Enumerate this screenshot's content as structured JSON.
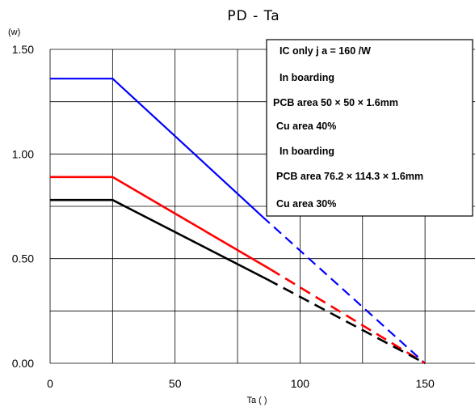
{
  "chart_data": {
    "type": "line",
    "title": "PD - Ta",
    "unit_label": "(w)",
    "xlabel": "Ta (   )",
    "ylabel": "",
    "xlim": [
      0,
      170
    ],
    "ylim": [
      0,
      1.5
    ],
    "x_ticks": [
      0,
      50,
      100,
      150
    ],
    "x_tick_labels": [
      "0",
      "50",
      "100",
      "150"
    ],
    "y_ticks": [
      0,
      0.5,
      1.0,
      1.5
    ],
    "y_tick_labels": [
      "0.00",
      "0.50",
      "1.00",
      "1.50"
    ],
    "grid": true,
    "series": [
      {
        "color": "#0000ff",
        "style": "solid",
        "x": [
          0,
          25,
          85
        ],
        "y": [
          1.36,
          1.36,
          0.7
        ]
      },
      {
        "color": "#0000ff",
        "style": "dashed",
        "x": [
          85,
          150
        ],
        "y": [
          0.7,
          0.0
        ]
      },
      {
        "color": "#ff0000",
        "style": "solid",
        "x": [
          0,
          25,
          88
        ],
        "y": [
          0.89,
          0.89,
          0.45
        ]
      },
      {
        "color": "#ff0000",
        "style": "dashed",
        "x": [
          88,
          150
        ],
        "y": [
          0.45,
          0.0
        ]
      },
      {
        "color": "#000000",
        "style": "solid",
        "x": [
          0,
          25,
          87
        ],
        "y": [
          0.78,
          0.78,
          0.4
        ]
      },
      {
        "color": "#000000",
        "style": "dashed",
        "x": [
          87,
          150
        ],
        "y": [
          0.4,
          0.0
        ]
      }
    ],
    "legend_lines": [
      "IC only    j    a = 160    /W",
      "In boarding",
      "PCB area 50 × 50 × 1.6mm",
      "Cu area   40%",
      "In boarding",
      "PCB area 76.2 × 114.3 × 1.6mm",
      "Cu area   30%"
    ],
    "legend_position": "top-right"
  }
}
